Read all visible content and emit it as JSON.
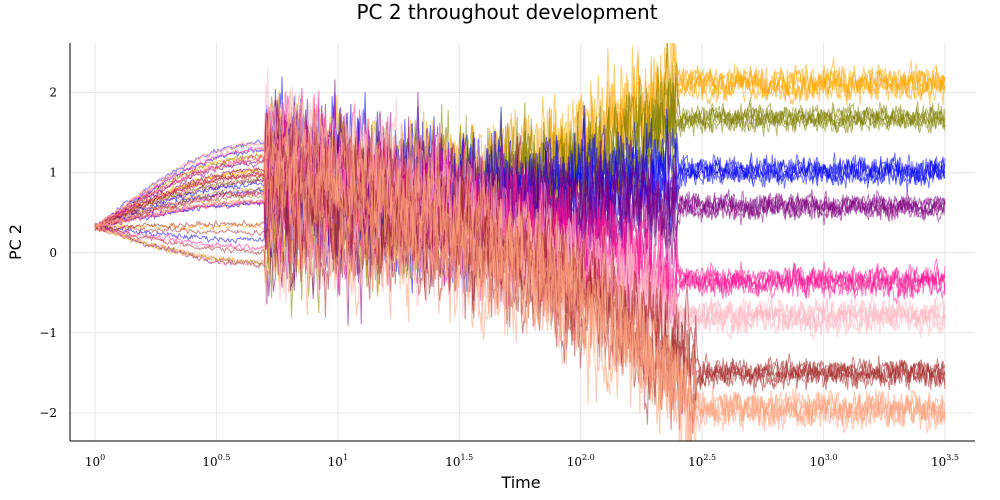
{
  "chart_data": {
    "type": "line",
    "title": "PC 2 throughout development",
    "xlabel": "Time",
    "ylabel": "PC 2",
    "x_scale": "log10",
    "xlim": [
      1,
      3162.3
    ],
    "ylim": [
      -2.35,
      2.62
    ],
    "x_ticks": [
      {
        "base": "10",
        "exp": "0"
      },
      {
        "base": "10",
        "exp": "0.5"
      },
      {
        "base": "10",
        "exp": "1"
      },
      {
        "base": "10",
        "exp": "1.5"
      },
      {
        "base": "10",
        "exp": "2.0"
      },
      {
        "base": "10",
        "exp": "2.5"
      },
      {
        "base": "10",
        "exp": "3.0"
      },
      {
        "base": "10",
        "exp": "3.5"
      }
    ],
    "x_tick_values": [
      1,
      3.162,
      10,
      31.62,
      100,
      316.2,
      1000,
      3162.3
    ],
    "y_ticks": [
      "−2",
      "−1",
      "0",
      "1",
      "2"
    ],
    "y_tick_values": [
      -2,
      -1,
      0,
      1,
      2
    ],
    "grid": true,
    "legend": "none",
    "initial_value": 0.32,
    "series": [
      {
        "color": "#ffa500",
        "final_mean": 2.12,
        "final_spread": 0.16,
        "diverge_time": 250
      },
      {
        "color": "#808000",
        "final_mean": 1.68,
        "final_spread": 0.13,
        "diverge_time": 250
      },
      {
        "color": "#0000ff",
        "final_mean": 1.02,
        "final_spread": 0.14,
        "diverge_time": 250
      },
      {
        "color": "#800080",
        "final_mean": 0.58,
        "final_spread": 0.13,
        "diverge_time": 250
      },
      {
        "color": "#ff1493",
        "final_mean": -0.35,
        "final_spread": 0.15,
        "diverge_time": 250
      },
      {
        "color": "#ffb6c1",
        "final_mean": -0.78,
        "final_spread": 0.16,
        "diverge_time": 250
      },
      {
        "color": "#a52a2a",
        "final_mean": -1.5,
        "final_spread": 0.14,
        "diverge_time": 300
      },
      {
        "color": "#ffa07a",
        "final_mean": -1.95,
        "final_spread": 0.18,
        "diverge_time": 300
      }
    ]
  }
}
